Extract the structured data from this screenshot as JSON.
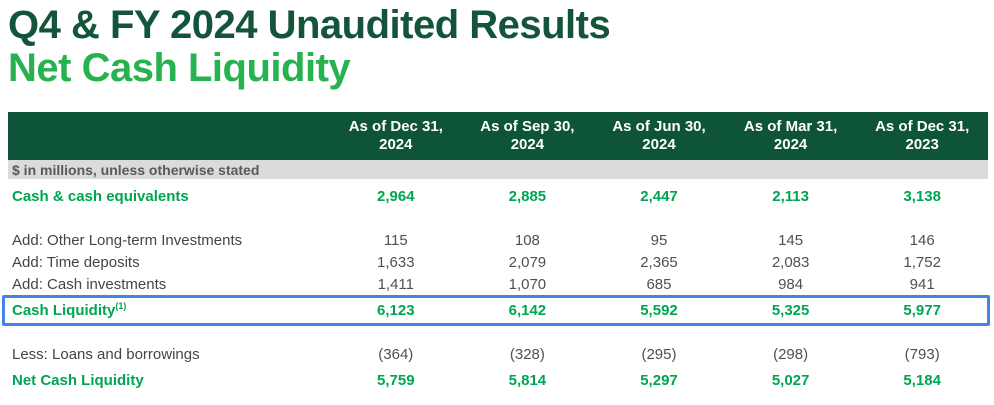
{
  "page": {
    "title": "Q4 & FY 2024 Unaudited Results",
    "subtitle": "Net Cash Liquidity"
  },
  "colors": {
    "title_dark_green": "#14543A",
    "subtitle_bright_green": "#26B24E",
    "header_bg_green": "#0E5438",
    "header_text": "#FFFFFF",
    "table_green_text": "#00A551",
    "plain_text_gray": "#505052",
    "unit_band_bg": "#DBDBD9",
    "unit_band_text": "#58595B",
    "highlight_border_blue": "#4583E6"
  },
  "table": {
    "unit_note": "$ in millions, unless otherwise stated",
    "columns": [
      {
        "line1": "As of Dec 31,",
        "line2": "2024"
      },
      {
        "line1": "As of Sep 30,",
        "line2": "2024"
      },
      {
        "line1": "As of Jun 30,",
        "line2": "2024"
      },
      {
        "line1": "As of Mar 31,",
        "line2": "2024"
      },
      {
        "line1": "As of Dec 31,",
        "line2": "2023"
      }
    ],
    "rows": [
      {
        "label": "Cash & cash equivalents",
        "style": "green",
        "values": [
          "2,964",
          "2,885",
          "2,447",
          "2,113",
          "3,138"
        ]
      },
      {
        "label": "Add: Other Long-term Investments",
        "style": "plain",
        "values": [
          "115",
          "108",
          "95",
          "145",
          "146"
        ]
      },
      {
        "label": "Add: Time deposits",
        "style": "plain",
        "values": [
          "1,633",
          "2,079",
          "2,365",
          "2,083",
          "1,752"
        ]
      },
      {
        "label": "Add: Cash investments",
        "style": "plain",
        "values": [
          "1,411",
          "1,070",
          "685",
          "984",
          "941"
        ]
      },
      {
        "label": "Cash Liquidity",
        "superscript": "(1)",
        "style": "green",
        "highlighted": true,
        "values": [
          "6,123",
          "6,142",
          "5,592",
          "5,325",
          "5,977"
        ]
      },
      {
        "label": "Less: Loans and borrowings",
        "style": "plain",
        "values": [
          "(364)",
          "(328)",
          "(295)",
          "(298)",
          "(793)"
        ]
      },
      {
        "label": "Net Cash Liquidity",
        "style": "green",
        "values": [
          "5,759",
          "5,814",
          "5,297",
          "5,027",
          "5,184"
        ]
      }
    ]
  }
}
